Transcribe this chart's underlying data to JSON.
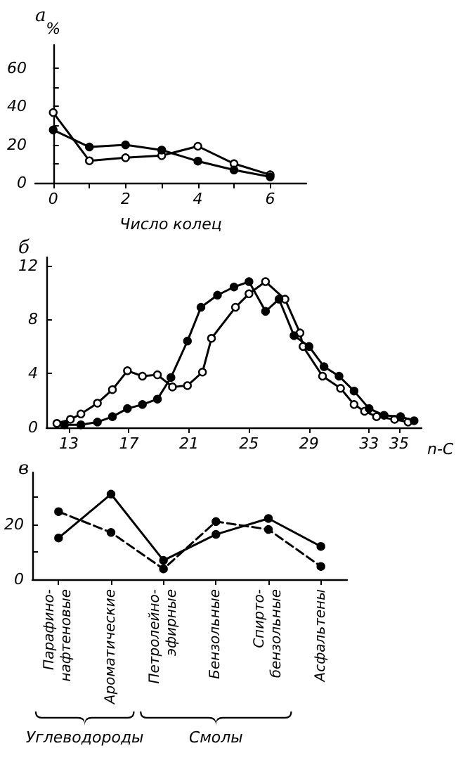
{
  "chart_data": [
    {
      "type": "line",
      "title": "а",
      "xlabel": "Число колец",
      "ylabel": "%",
      "marker": "circle",
      "grid": false,
      "xlim": [
        -0.5,
        7
      ],
      "xticks": [
        0,
        {
          "value": 1,
          "label": null
        },
        2,
        {
          "value": 3,
          "label": null
        },
        4,
        {
          "value": 5,
          "label": null
        },
        6
      ],
      "ylim": [
        0,
        72
      ],
      "yticks": [
        0,
        {
          "value": 10,
          "label": null
        },
        20,
        {
          "value": 30,
          "label": null
        },
        40,
        {
          "value": 50,
          "label": null
        },
        60
      ],
      "x": [
        0,
        1,
        2,
        3,
        4,
        5,
        6
      ],
      "series": [
        {
          "color": "#000000",
          "values": [
            27.6,
            18.7,
            19.8,
            17.1,
            11.3,
            6.7,
            3.1
          ]
        },
        {
          "color": "#000000",
          "values": [
            36.7,
            11.5,
            13.1,
            14.2,
            19.1,
            10,
            4.2
          ]
        }
      ]
    },
    {
      "type": "line",
      "title": "б",
      "xlabel": "n-C",
      "marker": "circle",
      "grid": false,
      "xlim": [
        11.5,
        36.5
      ],
      "xticks": [
        13,
        17,
        21,
        25,
        29,
        33,
        35
      ],
      "ylim": [
        0,
        12.6
      ],
      "yticks": [
        0,
        4,
        8,
        12
      ],
      "series": [
        {
          "color": "#000000",
          "x": [
            12.7,
            13.8,
            14.9,
            15.9,
            16.9,
            17.9,
            18.9,
            19.8,
            20.9,
            21.8,
            22.9,
            24.0,
            25.0,
            26.1,
            27.0,
            28.0,
            29.0,
            30.0,
            31.0,
            32.0,
            33.0,
            34.0,
            35.1,
            36.0
          ],
          "values": [
            0.2,
            0.2,
            0.4,
            0.8,
            1.4,
            1.7,
            2.1,
            3.7,
            6.4,
            8.9,
            9.8,
            10.4,
            10.8,
            8.6,
            9.5,
            6.8,
            6.0,
            4.5,
            3.8,
            2.7,
            1.4,
            0.9,
            0.8,
            0.5
          ]
        },
        {
          "color": "#000000",
          "x": [
            12.2,
            13.1,
            13.8,
            14.9,
            15.9,
            16.9,
            17.9,
            18.9,
            19.9,
            20.9,
            21.9,
            22.5,
            24.1,
            25.0,
            26.1,
            27.4,
            28.4,
            28.6,
            29.9,
            31.1,
            32.0,
            32.7,
            33.5,
            34.7,
            35.6
          ],
          "values": [
            0.3,
            0.6,
            1.0,
            1.8,
            2.8,
            4.2,
            3.8,
            3.9,
            3.0,
            3.1,
            4.1,
            6.6,
            8.9,
            9.9,
            10.8,
            9.5,
            7.0,
            6.0,
            3.8,
            2.9,
            1.7,
            1.2,
            0.8,
            0.6,
            0.4
          ]
        }
      ]
    },
    {
      "type": "line",
      "title": "в",
      "marker": "circle",
      "grid": false,
      "categories": [
        "Парафино-нафтеновые",
        "Ароматические",
        "Петролейно-эфирные",
        "Бензольные",
        "Спирто-бензольные",
        "Асфальтены"
      ],
      "ylim": [
        0,
        39
      ],
      "yticks": [
        0,
        {
          "value": 10,
          "label": null
        },
        20,
        {
          "value": 30,
          "label": null
        }
      ],
      "annotations": [
        "Углеводороды",
        "Смолы"
      ],
      "series": [
        {
          "color": "#000000",
          "line_style": "solid",
          "values": [
            15.1,
            31.1,
            6.9,
            16.4,
            22.2,
            12
          ]
        },
        {
          "color": "#000000",
          "line_style": "dashed",
          "values": [
            24.7,
            17.1,
            3.8,
            21.1,
            18.2,
            4.7
          ]
        }
      ]
    }
  ]
}
